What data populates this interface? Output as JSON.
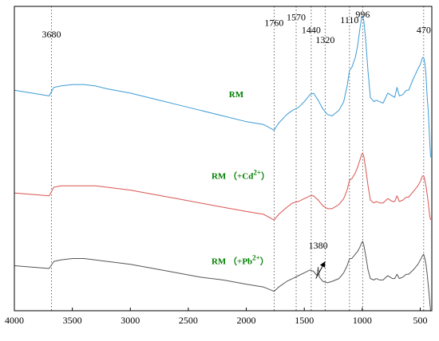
{
  "chart_data": {
    "type": "line",
    "title": "",
    "xlabel": "",
    "ylabel": "",
    "xlim": [
      4000,
      400
    ],
    "x_reversed": true,
    "y_axis_ticks_shown": false,
    "x_ticks": [
      4000,
      3500,
      3000,
      2500,
      2000,
      1500,
      1000,
      500
    ],
    "x_tick_labels": [
      "4000",
      "3500",
      "3000",
      "2500",
      "2000",
      "1500",
      "1000",
      "500"
    ],
    "ylim": [
      0,
      10
    ],
    "grid": false,
    "reference_lines": [
      3680,
      1760,
      1570,
      1440,
      1320,
      1110,
      996,
      470
    ],
    "peak_labels": [
      {
        "text": "3680",
        "x": 3680,
        "y": 9.3
      },
      {
        "text": "1760",
        "x": 1760,
        "y": 9.7
      },
      {
        "text": "1570",
        "x": 1570,
        "y": 9.9
      },
      {
        "text": "1440",
        "x": 1440,
        "y": 9.45
      },
      {
        "text": "1320",
        "x": 1320,
        "y": 9.1
      },
      {
        "text": "1110",
        "x": 1110,
        "y": 9.8
      },
      {
        "text": "996",
        "x": 996,
        "y": 10.0
      },
      {
        "text": "470",
        "x": 470,
        "y": 9.45
      },
      {
        "text": "1380",
        "x": 1380,
        "y": 1.9
      }
    ],
    "annotations": [
      {
        "type": "arrow",
        "from": [
          1400,
          0.85
        ],
        "to": [
          1320,
          1.45
        ],
        "label": "1380"
      }
    ],
    "series": [
      {
        "name": "RM",
        "color": "#3a9bd5",
        "label_x": 2150,
        "label_y": 7.2,
        "x": [
          4000,
          3700,
          3660,
          3600,
          3500,
          3400,
          3300,
          3200,
          3000,
          2800,
          2600,
          2400,
          2200,
          2000,
          1850,
          1760,
          1720,
          1650,
          1600,
          1550,
          1500,
          1450,
          1420,
          1380,
          1340,
          1300,
          1260,
          1200,
          1160,
          1130,
          1110,
          1090,
          1060,
          1040,
          1020,
          1005,
          996,
          985,
          970,
          950,
          930,
          900,
          880,
          850,
          820,
          780,
          760,
          740,
          720,
          700,
          680,
          650,
          620,
          600,
          560,
          520,
          500,
          480,
          470,
          460,
          450,
          440,
          430,
          420,
          410
        ],
        "y": [
          7.45,
          7.25,
          7.55,
          7.6,
          7.65,
          7.65,
          7.6,
          7.5,
          7.35,
          7.15,
          6.95,
          6.75,
          6.55,
          6.35,
          6.25,
          6.05,
          6.3,
          6.6,
          6.75,
          6.85,
          7.05,
          7.3,
          7.35,
          7.1,
          6.8,
          6.6,
          6.55,
          6.75,
          7.05,
          7.6,
          8.15,
          8.25,
          8.6,
          9.0,
          9.6,
          10.0,
          10.05,
          9.85,
          9.2,
          8.1,
          7.2,
          7.05,
          7.1,
          7.05,
          7.0,
          7.35,
          7.3,
          7.25,
          7.2,
          7.55,
          7.25,
          7.3,
          7.45,
          7.45,
          7.85,
          8.2,
          8.35,
          8.6,
          8.6,
          8.4,
          8.0,
          7.2,
          6.7,
          5.8,
          5.1
        ]
      },
      {
        "name": "RM（+Cd²⁺）",
        "label_text_main": "RM （+Cd",
        "label_text_sup": "2+",
        "label_text_end": "）",
        "color": "#d9534f",
        "label_x": 2300,
        "label_y": 4.35,
        "x": [
          4000,
          3700,
          3660,
          3600,
          3500,
          3400,
          3300,
          3200,
          3000,
          2800,
          2600,
          2400,
          2200,
          2000,
          1850,
          1760,
          1720,
          1650,
          1600,
          1550,
          1500,
          1450,
          1420,
          1380,
          1340,
          1300,
          1260,
          1200,
          1160,
          1130,
          1110,
          1090,
          1060,
          1040,
          1020,
          1005,
          996,
          985,
          970,
          950,
          930,
          900,
          880,
          850,
          820,
          780,
          760,
          740,
          720,
          700,
          680,
          650,
          620,
          600,
          560,
          520,
          500,
          480,
          470,
          460,
          450,
          440,
          430,
          420,
          410
        ],
        "y": [
          3.85,
          3.75,
          4.05,
          4.1,
          4.1,
          4.1,
          4.1,
          4.05,
          3.95,
          3.8,
          3.65,
          3.5,
          3.35,
          3.2,
          3.1,
          2.9,
          3.1,
          3.35,
          3.5,
          3.55,
          3.65,
          3.75,
          3.75,
          3.6,
          3.4,
          3.3,
          3.3,
          3.45,
          3.65,
          3.95,
          4.3,
          4.35,
          4.55,
          4.75,
          5.0,
          5.2,
          5.25,
          5.1,
          4.7,
          4.1,
          3.6,
          3.5,
          3.55,
          3.5,
          3.5,
          3.65,
          3.6,
          3.55,
          3.55,
          3.75,
          3.55,
          3.6,
          3.7,
          3.7,
          3.9,
          4.1,
          4.25,
          4.45,
          4.45,
          4.3,
          4.1,
          3.8,
          3.5,
          3.1,
          2.9
        ]
      },
      {
        "name": "RM（+Pb²⁺）",
        "label_text_main": "RM （+Pb",
        "label_text_sup": "2+",
        "label_text_end": "）",
        "color": "#555555",
        "label_x": 2300,
        "label_y": 1.35,
        "x": [
          4000,
          3700,
          3660,
          3600,
          3500,
          3400,
          3300,
          3200,
          3000,
          2800,
          2600,
          2400,
          2200,
          2000,
          1850,
          1760,
          1720,
          1650,
          1600,
          1550,
          1500,
          1450,
          1420,
          1390,
          1380,
          1370,
          1340,
          1300,
          1260,
          1200,
          1160,
          1130,
          1110,
          1090,
          1060,
          1040,
          1020,
          1005,
          996,
          985,
          970,
          950,
          930,
          900,
          880,
          850,
          820,
          780,
          760,
          740,
          720,
          700,
          680,
          650,
          620,
          600,
          560,
          520,
          500,
          480,
          470,
          460,
          450,
          440,
          430,
          420,
          410
        ],
        "y": [
          1.3,
          1.2,
          1.45,
          1.5,
          1.55,
          1.55,
          1.5,
          1.45,
          1.35,
          1.2,
          1.05,
          0.9,
          0.8,
          0.65,
          0.55,
          0.4,
          0.55,
          0.75,
          0.85,
          0.95,
          1.05,
          1.15,
          1.1,
          0.95,
          1.25,
          0.9,
          0.75,
          0.7,
          0.75,
          0.85,
          1.05,
          1.3,
          1.55,
          1.55,
          1.7,
          1.8,
          1.95,
          2.1,
          2.15,
          2.0,
          1.65,
          1.15,
          0.85,
          0.8,
          0.85,
          0.8,
          0.8,
          0.95,
          0.9,
          0.85,
          0.85,
          1.0,
          0.85,
          0.9,
          1.0,
          1.0,
          1.15,
          1.35,
          1.5,
          1.65,
          1.7,
          1.55,
          1.35,
          1.0,
          0.6,
          0.15,
          -0.3
        ]
      }
    ]
  }
}
